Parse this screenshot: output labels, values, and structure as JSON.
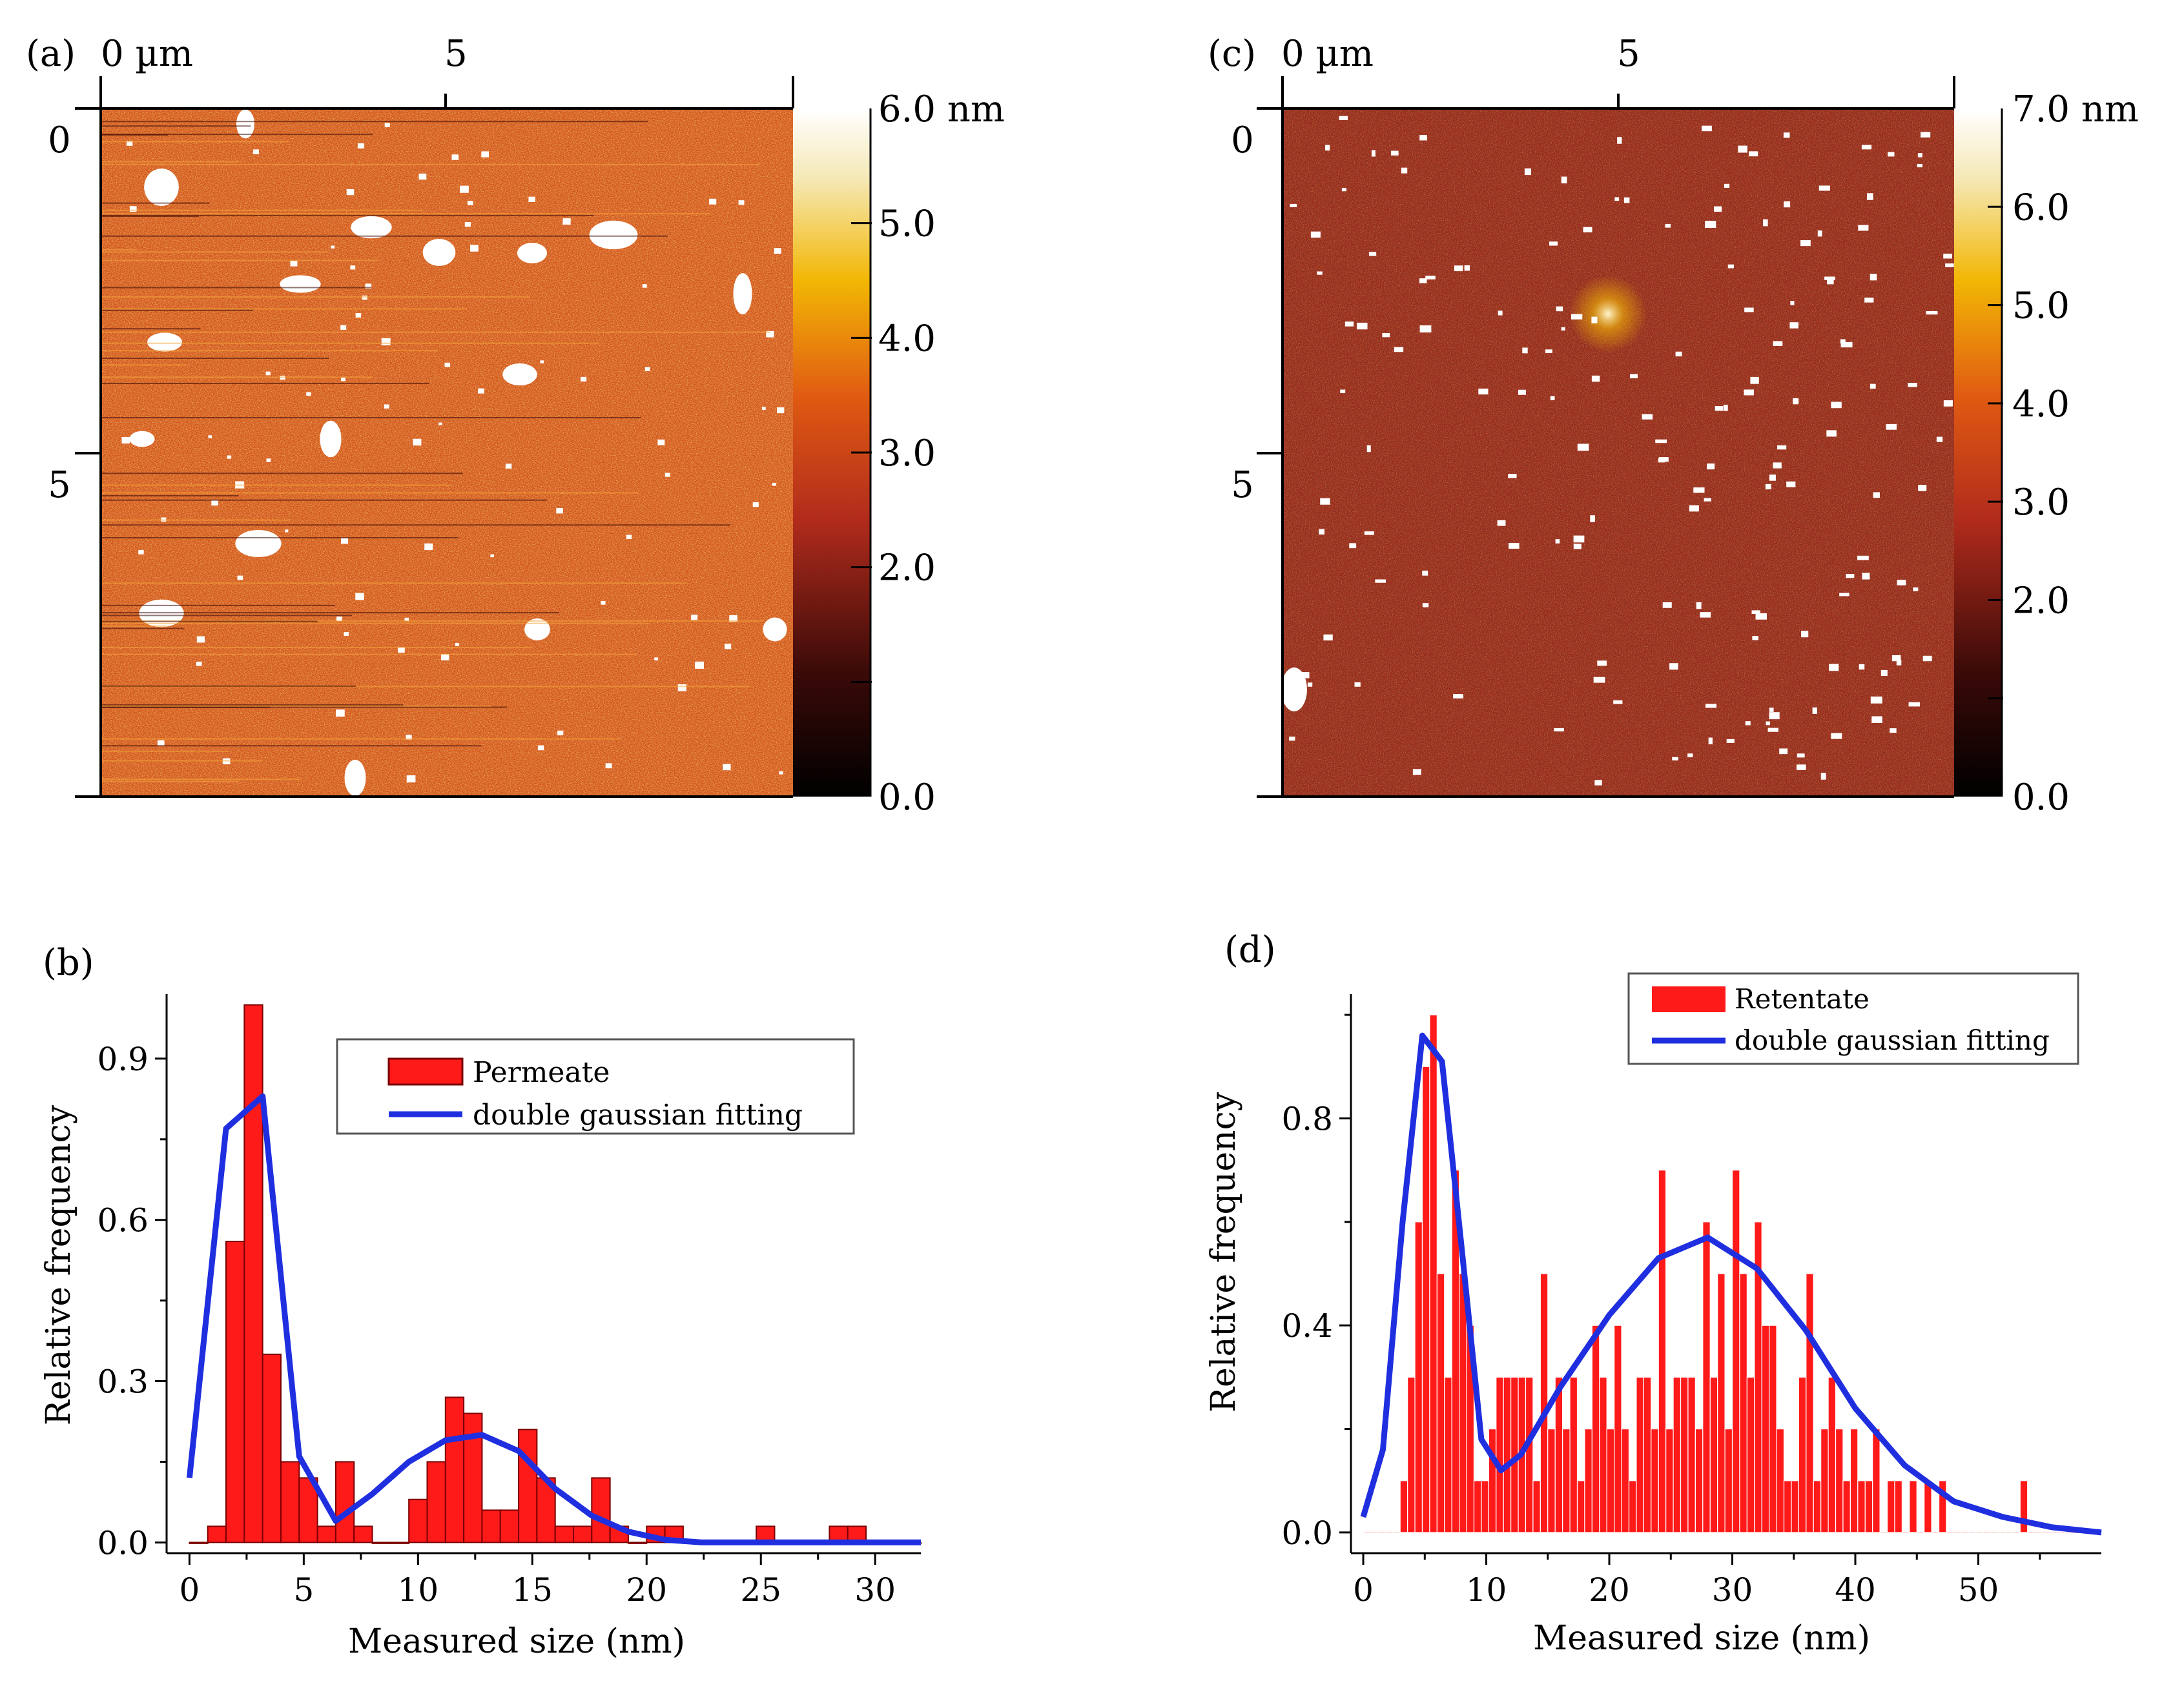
{
  "colors": {
    "bar_fill": "#ff1a1a",
    "bar_edge": "#7a0000",
    "fit_line": "#1f2fe0",
    "afm_dark": "#000000",
    "afm_mid": "#c8461a",
    "afm_bright": "#f2b705",
    "afm_max": "#ffffff"
  },
  "chart_data": [
    {
      "panel": "(a)",
      "type": "heatmap",
      "description_kind": "afm-image",
      "x_axis": {
        "labels": [
          "0 µm",
          "5"
        ],
        "ticks": [
          0,
          5
        ],
        "range": [
          0,
          10
        ]
      },
      "y_axis": {
        "labels": [
          "0",
          "5"
        ],
        "ticks": [
          0,
          5
        ],
        "range": [
          0,
          10
        ]
      },
      "colorbar": {
        "labels": [
          "6.0 nm",
          "5.0",
          "4.0",
          "3.0",
          "2.0",
          "0.0"
        ],
        "values": [
          6,
          5,
          4,
          3,
          2,
          0
        ],
        "range": [
          0,
          6.0
        ],
        "minor_ticks": [
          1
        ]
      }
    },
    {
      "panel": "(c)",
      "type": "heatmap",
      "description_kind": "afm-image",
      "x_axis": {
        "labels": [
          "0 µm",
          "5"
        ],
        "ticks": [
          0,
          5
        ],
        "range": [
          0,
          10
        ]
      },
      "y_axis": {
        "labels": [
          "0",
          "5"
        ],
        "ticks": [
          0,
          5
        ],
        "range": [
          0,
          10
        ]
      },
      "colorbar": {
        "labels": [
          "7.0 nm",
          "6.0",
          "5.0",
          "4.0",
          "3.0",
          "2.0",
          "0.0"
        ],
        "values": [
          7,
          6,
          5,
          4,
          3,
          2,
          0
        ],
        "range": [
          0,
          7.0
        ],
        "minor_ticks": [
          1
        ]
      }
    },
    {
      "panel": "(b)",
      "type": "bar",
      "xlabel": "Measured size (nm)",
      "ylabel": "Relative frequency",
      "xlim": [
        -1,
        32
      ],
      "ylim": [
        -0.02,
        1.02
      ],
      "xticks": [
        0,
        5,
        10,
        15,
        20,
        25,
        30
      ],
      "yticks": [
        0.0,
        0.3,
        0.6,
        0.9
      ],
      "ytick_labels": [
        "0.0",
        "0.3",
        "0.6",
        "0.9"
      ],
      "bin_width": 0.8,
      "x": [
        0,
        0.8,
        1.6,
        2.4,
        3.2,
        4.0,
        4.8,
        5.6,
        6.4,
        7.2,
        8.0,
        8.8,
        9.6,
        10.4,
        11.2,
        12.0,
        12.8,
        13.6,
        14.4,
        15.2,
        16.0,
        16.8,
        17.6,
        18.4,
        19.2,
        20.0,
        20.8,
        21.6,
        22.4,
        23.2,
        24.0,
        24.8,
        25.6,
        26.4,
        27.2,
        28.0,
        28.8,
        29.6,
        30.4,
        31.2
      ],
      "values": [
        0.0,
        0.03,
        0.56,
        1.0,
        0.35,
        0.15,
        0.12,
        0.03,
        0.15,
        0.03,
        0.0,
        0.0,
        0.08,
        0.15,
        0.27,
        0.24,
        0.06,
        0.06,
        0.21,
        0.12,
        0.03,
        0.03,
        0.12,
        0.03,
        0.0,
        0.03,
        0.03,
        0.0,
        0.0,
        0.0,
        0.0,
        0.03,
        0.0,
        0.0,
        0.0,
        0.03,
        0.03,
        0.0,
        0.0,
        0.0
      ],
      "fit": {
        "x": [
          0,
          1.6,
          3.2,
          4.8,
          6.4,
          8.0,
          9.6,
          11.2,
          12.8,
          14.4,
          16.0,
          17.6,
          19.2,
          20.8,
          22.4,
          24.0,
          25.6,
          27.2,
          28.8,
          30.4,
          32.0
        ],
        "y": [
          0.12,
          0.77,
          0.83,
          0.16,
          0.04,
          0.09,
          0.15,
          0.19,
          0.2,
          0.17,
          0.1,
          0.05,
          0.02,
          0.005,
          0.0,
          0.0,
          0.0,
          0.0,
          0.0,
          0.0,
          0.0
        ]
      },
      "legend": {
        "entries": [
          "Permeate",
          "double gaussian fitting"
        ],
        "position": "top-right"
      }
    },
    {
      "panel": "(d)",
      "type": "bar",
      "xlabel": "Measured size (nm)",
      "ylabel": "Relative frequency",
      "xlim": [
        -1,
        60
      ],
      "ylim": [
        -0.04,
        1.04
      ],
      "xticks": [
        0,
        10,
        20,
        30,
        40,
        50
      ],
      "yticks": [
        0.0,
        0.4,
        0.8
      ],
      "ytick_labels": [
        "0.0",
        "0.4",
        "0.8"
      ],
      "bin_width": 0.6,
      "x": [
        0,
        0.6,
        1.2,
        1.8,
        2.4,
        3.0,
        3.6,
        4.2,
        4.8,
        5.4,
        6.0,
        6.6,
        7.2,
        7.8,
        8.4,
        9.0,
        9.6,
        10.2,
        10.8,
        11.4,
        12.0,
        12.6,
        13.2,
        13.8,
        14.4,
        15.0,
        15.6,
        16.2,
        16.8,
        17.4,
        18.0,
        18.6,
        19.2,
        19.8,
        20.4,
        21.0,
        21.6,
        22.2,
        22.8,
        23.4,
        24.0,
        24.6,
        25.2,
        25.8,
        26.4,
        27.0,
        27.6,
        28.2,
        28.8,
        29.4,
        30.0,
        30.6,
        31.2,
        31.8,
        32.4,
        33.0,
        33.6,
        34.2,
        34.8,
        35.4,
        36.0,
        36.6,
        37.2,
        37.8,
        38.4,
        39.0,
        39.6,
        40.2,
        40.8,
        41.4,
        42.0,
        42.6,
        43.2,
        43.8,
        44.4,
        45.0,
        45.6,
        46.2,
        46.8,
        47.4,
        48.0,
        48.6,
        49.2,
        49.8,
        50.4,
        51.0,
        51.6,
        52.2,
        52.8,
        53.4,
        54.0,
        54.6,
        55.2,
        55.8,
        56.4,
        57.0,
        57.6,
        58.2,
        58.8
      ],
      "values": [
        0.0,
        0.0,
        0.0,
        0.0,
        0.0,
        0.1,
        0.3,
        0.6,
        0.9,
        1.0,
        0.5,
        0.3,
        0.7,
        0.5,
        0.4,
        0.1,
        0.1,
        0.2,
        0.3,
        0.3,
        0.3,
        0.3,
        0.3,
        0.1,
        0.5,
        0.2,
        0.3,
        0.2,
        0.3,
        0.1,
        0.2,
        0.4,
        0.3,
        0.2,
        0.4,
        0.2,
        0.1,
        0.3,
        0.3,
        0.2,
        0.7,
        0.2,
        0.3,
        0.3,
        0.3,
        0.2,
        0.6,
        0.3,
        0.5,
        0.2,
        0.7,
        0.5,
        0.3,
        0.6,
        0.4,
        0.4,
        0.2,
        0.1,
        0.1,
        0.3,
        0.5,
        0.1,
        0.2,
        0.3,
        0.2,
        0.1,
        0.2,
        0.1,
        0.1,
        0.2,
        0.0,
        0.1,
        0.1,
        0.0,
        0.1,
        0.0,
        0.1,
        0.0,
        0.1,
        0.0,
        0.0,
        0.0,
        0.0,
        0.0,
        0.0,
        0.0,
        0.0,
        0.0,
        0.0,
        0.1,
        0.0,
        0.0,
        0.0,
        0.0,
        0.0,
        0.0,
        0.0,
        0.0,
        0.0
      ],
      "fit": {
        "x": [
          0,
          1.6,
          3.2,
          4.8,
          6.4,
          8.0,
          9.6,
          11.2,
          12.8,
          16.0,
          20.0,
          24.0,
          28.0,
          32.0,
          36.0,
          40.0,
          44.0,
          48.0,
          52.0,
          56.0,
          60.0
        ],
        "y": [
          0.03,
          0.16,
          0.6,
          0.96,
          0.91,
          0.55,
          0.18,
          0.12,
          0.15,
          0.28,
          0.42,
          0.53,
          0.57,
          0.51,
          0.39,
          0.24,
          0.13,
          0.06,
          0.03,
          0.01,
          0.0
        ]
      },
      "legend": {
        "entries": [
          "Retentate",
          "double gaussian fitting"
        ],
        "position": "top-right"
      }
    }
  ]
}
